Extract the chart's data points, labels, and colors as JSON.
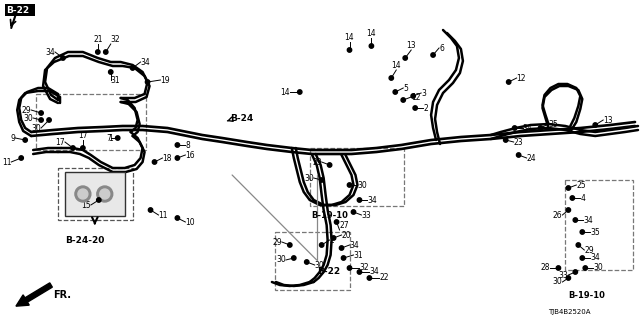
{
  "bg_color": "#ffffff",
  "line_color": "#111111",
  "diagram_code": "TJB4B2520A",
  "labels": {
    "B22_top": "B-22",
    "B24": "B-24",
    "B2420": "B-24-20",
    "B1910_mid": "B-19-10",
    "B22_bot": "B-22",
    "B1910_right": "B-19-10",
    "FR": "FR."
  }
}
